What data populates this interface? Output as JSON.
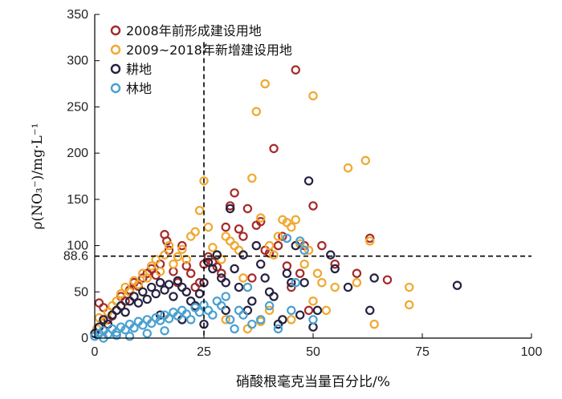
{
  "chart_data": {
    "type": "scatter",
    "xlabel": "硝酸根毫克当量百分比/%",
    "ylabel": "ρ(NO₃⁻)/mg·L⁻¹",
    "xlim": [
      0,
      100
    ],
    "ylim": [
      0,
      350
    ],
    "xticks": [
      "0",
      "25",
      "50",
      "75",
      "100"
    ],
    "yticks": [
      "0",
      "50",
      "100",
      "150",
      "200",
      "250",
      "300",
      "350"
    ],
    "legend_position": "top-left",
    "reference_lines": {
      "vertical_x": 25,
      "horizontal_y": 88.6,
      "horizontal_label": "88.6"
    },
    "series": [
      {
        "name": "2008年前形成建设用地",
        "color": "#a52a2a",
        "points": [
          [
            1,
            38
          ],
          [
            2,
            33
          ],
          [
            3,
            20
          ],
          [
            4,
            24
          ],
          [
            5,
            30
          ],
          [
            6,
            45
          ],
          [
            7,
            40
          ],
          [
            8,
            52
          ],
          [
            9,
            60
          ],
          [
            10,
            56
          ],
          [
            11,
            65
          ],
          [
            12,
            70
          ],
          [
            13,
            75
          ],
          [
            14,
            68
          ],
          [
            15,
            80
          ],
          [
            16,
            112
          ],
          [
            16.5,
            105
          ],
          [
            17,
            95
          ],
          [
            18,
            72
          ],
          [
            19,
            60
          ],
          [
            20,
            100
          ],
          [
            21,
            78
          ],
          [
            22,
            70
          ],
          [
            23,
            55
          ],
          [
            24,
            60
          ],
          [
            25,
            80
          ],
          [
            26,
            88
          ],
          [
            27,
            82
          ],
          [
            28,
            77
          ],
          [
            29,
            70
          ],
          [
            30,
            120
          ],
          [
            31,
            143
          ],
          [
            32,
            157
          ],
          [
            33,
            118
          ],
          [
            34,
            110
          ],
          [
            35,
            140
          ],
          [
            36,
            65
          ],
          [
            37,
            122
          ],
          [
            38,
            126
          ],
          [
            39,
            95
          ],
          [
            40,
            92
          ],
          [
            41,
            205
          ],
          [
            42,
            100
          ],
          [
            43,
            110
          ],
          [
            44,
            78
          ],
          [
            45,
            55
          ],
          [
            46,
            290
          ],
          [
            47,
            70
          ],
          [
            48,
            100
          ],
          [
            49,
            30
          ],
          [
            50,
            143
          ],
          [
            52,
            100
          ],
          [
            55,
            80
          ],
          [
            60,
            70
          ],
          [
            63,
            108
          ],
          [
            67,
            63
          ]
        ]
      },
      {
        "name": "2009~2018年新增建设用地",
        "color": "#f0a830",
        "points": [
          [
            0.5,
            10
          ],
          [
            1,
            22
          ],
          [
            2,
            18
          ],
          [
            3,
            28
          ],
          [
            4,
            35
          ],
          [
            5,
            40
          ],
          [
            6,
            48
          ],
          [
            7,
            55
          ],
          [
            8,
            50
          ],
          [
            9,
            62
          ],
          [
            10,
            58
          ],
          [
            11,
            70
          ],
          [
            12,
            65
          ],
          [
            13,
            78
          ],
          [
            14,
            85
          ],
          [
            15,
            72
          ],
          [
            16,
            90
          ],
          [
            17,
            100
          ],
          [
            18,
            80
          ],
          [
            19,
            88
          ],
          [
            20,
            96
          ],
          [
            21,
            85
          ],
          [
            22,
            110
          ],
          [
            23,
            115
          ],
          [
            24,
            138
          ],
          [
            25,
            170
          ],
          [
            26,
            120
          ],
          [
            27,
            98
          ],
          [
            28,
            90
          ],
          [
            29,
            85
          ],
          [
            30,
            110
          ],
          [
            31,
            105
          ],
          [
            32,
            100
          ],
          [
            33,
            95
          ],
          [
            34,
            65
          ],
          [
            35,
            55
          ],
          [
            36,
            173
          ],
          [
            37,
            245
          ],
          [
            38,
            130
          ],
          [
            39,
            275
          ],
          [
            40,
            100
          ],
          [
            41,
            90
          ],
          [
            42,
            110
          ],
          [
            43,
            128
          ],
          [
            44,
            125
          ],
          [
            45,
            120
          ],
          [
            46,
            128
          ],
          [
            47,
            102
          ],
          [
            48,
            80
          ],
          [
            49,
            95
          ],
          [
            50,
            262
          ],
          [
            51,
            70
          ],
          [
            52,
            60
          ],
          [
            53,
            30
          ],
          [
            55,
            55
          ],
          [
            58,
            184
          ],
          [
            60,
            60
          ],
          [
            62,
            192
          ],
          [
            63,
            105
          ],
          [
            64,
            15
          ],
          [
            72,
            55
          ],
          [
            72,
            36
          ],
          [
            40,
            30
          ],
          [
            45,
            20
          ],
          [
            50,
            40
          ],
          [
            30,
            20
          ],
          [
            35,
            10
          ],
          [
            38,
            18
          ]
        ]
      },
      {
        "name": "耕地",
        "color": "#252240",
        "points": [
          [
            0,
            5
          ],
          [
            1,
            12
          ],
          [
            2,
            20
          ],
          [
            3,
            15
          ],
          [
            4,
            25
          ],
          [
            5,
            30
          ],
          [
            6,
            35
          ],
          [
            7,
            28
          ],
          [
            8,
            40
          ],
          [
            9,
            45
          ],
          [
            10,
            38
          ],
          [
            11,
            50
          ],
          [
            12,
            42
          ],
          [
            13,
            55
          ],
          [
            14,
            48
          ],
          [
            15,
            60
          ],
          [
            16,
            52
          ],
          [
            17,
            58
          ],
          [
            18,
            45
          ],
          [
            19,
            62
          ],
          [
            20,
            55
          ],
          [
            21,
            50
          ],
          [
            22,
            40
          ],
          [
            23,
            35
          ],
          [
            24,
            48
          ],
          [
            25,
            60
          ],
          [
            26,
            82
          ],
          [
            27,
            75
          ],
          [
            28,
            90
          ],
          [
            29,
            65
          ],
          [
            30,
            60
          ],
          [
            31,
            140
          ],
          [
            32,
            75
          ],
          [
            33,
            55
          ],
          [
            34,
            90
          ],
          [
            35,
            30
          ],
          [
            36,
            40
          ],
          [
            37,
            100
          ],
          [
            38,
            80
          ],
          [
            39,
            65
          ],
          [
            40,
            50
          ],
          [
            41,
            45
          ],
          [
            42,
            15
          ],
          [
            43,
            20
          ],
          [
            44,
            70
          ],
          [
            45,
            60
          ],
          [
            46,
            100
          ],
          [
            47,
            25
          ],
          [
            48,
            60
          ],
          [
            49,
            170
          ],
          [
            50,
            12
          ],
          [
            51,
            30
          ],
          [
            54,
            90
          ],
          [
            55,
            75
          ],
          [
            58,
            55
          ],
          [
            63,
            30
          ],
          [
            64,
            65
          ],
          [
            83,
            57
          ],
          [
            20,
            20
          ],
          [
            25,
            15
          ],
          [
            15,
            25
          ],
          [
            30,
            30
          ]
        ]
      },
      {
        "name": "林地",
        "color": "#4aa0d0",
        "points": [
          [
            0,
            2
          ],
          [
            1,
            5
          ],
          [
            2,
            8
          ],
          [
            3,
            4
          ],
          [
            4,
            10
          ],
          [
            5,
            6
          ],
          [
            6,
            12
          ],
          [
            7,
            9
          ],
          [
            8,
            15
          ],
          [
            9,
            11
          ],
          [
            10,
            18
          ],
          [
            11,
            14
          ],
          [
            12,
            20
          ],
          [
            13,
            16
          ],
          [
            14,
            22
          ],
          [
            15,
            19
          ],
          [
            16,
            25
          ],
          [
            17,
            21
          ],
          [
            18,
            28
          ],
          [
            19,
            24
          ],
          [
            20,
            30
          ],
          [
            21,
            26
          ],
          [
            22,
            20
          ],
          [
            23,
            33
          ],
          [
            24,
            28
          ],
          [
            25,
            36
          ],
          [
            26,
            30
          ],
          [
            27,
            25
          ],
          [
            28,
            40
          ],
          [
            29,
            35
          ],
          [
            30,
            45
          ],
          [
            31,
            20
          ],
          [
            32,
            10
          ],
          [
            33,
            30
          ],
          [
            34,
            25
          ],
          [
            35,
            55
          ],
          [
            36,
            15
          ],
          [
            38,
            20
          ],
          [
            40,
            35
          ],
          [
            42,
            10
          ],
          [
            44,
            108
          ],
          [
            45,
            30
          ],
          [
            46,
            60
          ],
          [
            47,
            105
          ],
          [
            48,
            95
          ],
          [
            50,
            20
          ],
          [
            2,
            0
          ],
          [
            5,
            3
          ],
          [
            8,
            2
          ],
          [
            12,
            5
          ],
          [
            16,
            8
          ]
        ]
      }
    ]
  }
}
